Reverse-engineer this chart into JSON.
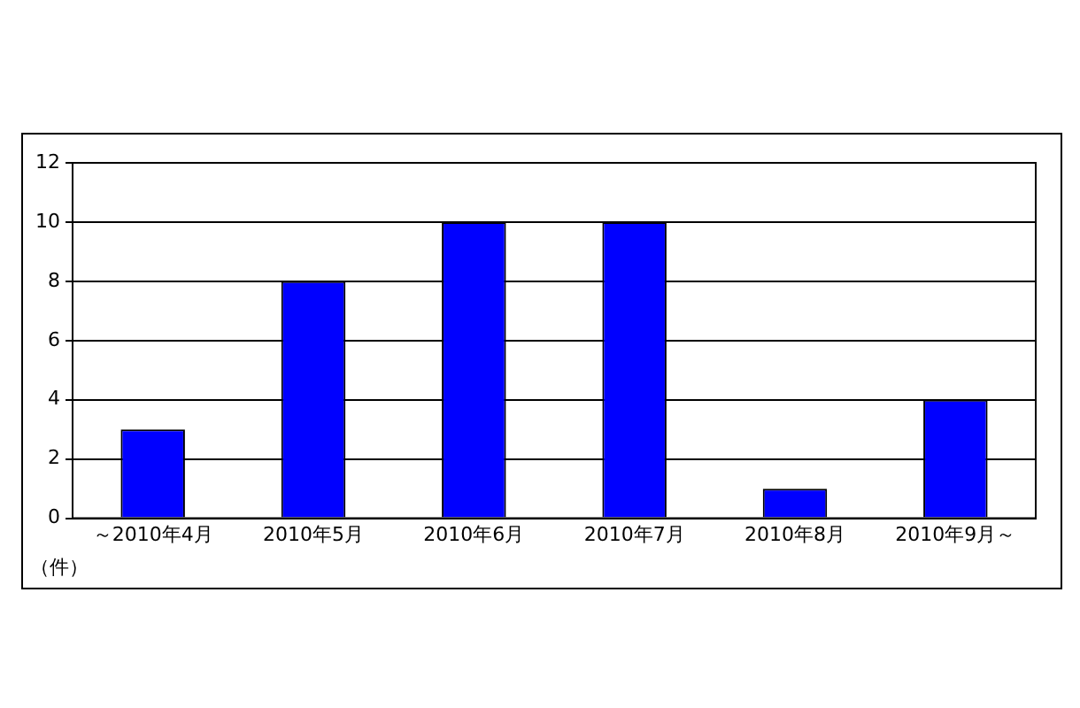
{
  "chart_data": {
    "type": "bar",
    "ylabel": "（件）",
    "categories": [
      "～2010年4月",
      "2010年5月",
      "2010年6月",
      "2010年7月",
      "2010年8月",
      "2010年9月～"
    ],
    "values": [
      3,
      8,
      10,
      10,
      1,
      4
    ],
    "color": "#0000ff",
    "ylim": [
      0,
      12
    ],
    "yticks": [
      0,
      2,
      4,
      6,
      8,
      10,
      12
    ],
    "grid": "y",
    "legend": false
  }
}
